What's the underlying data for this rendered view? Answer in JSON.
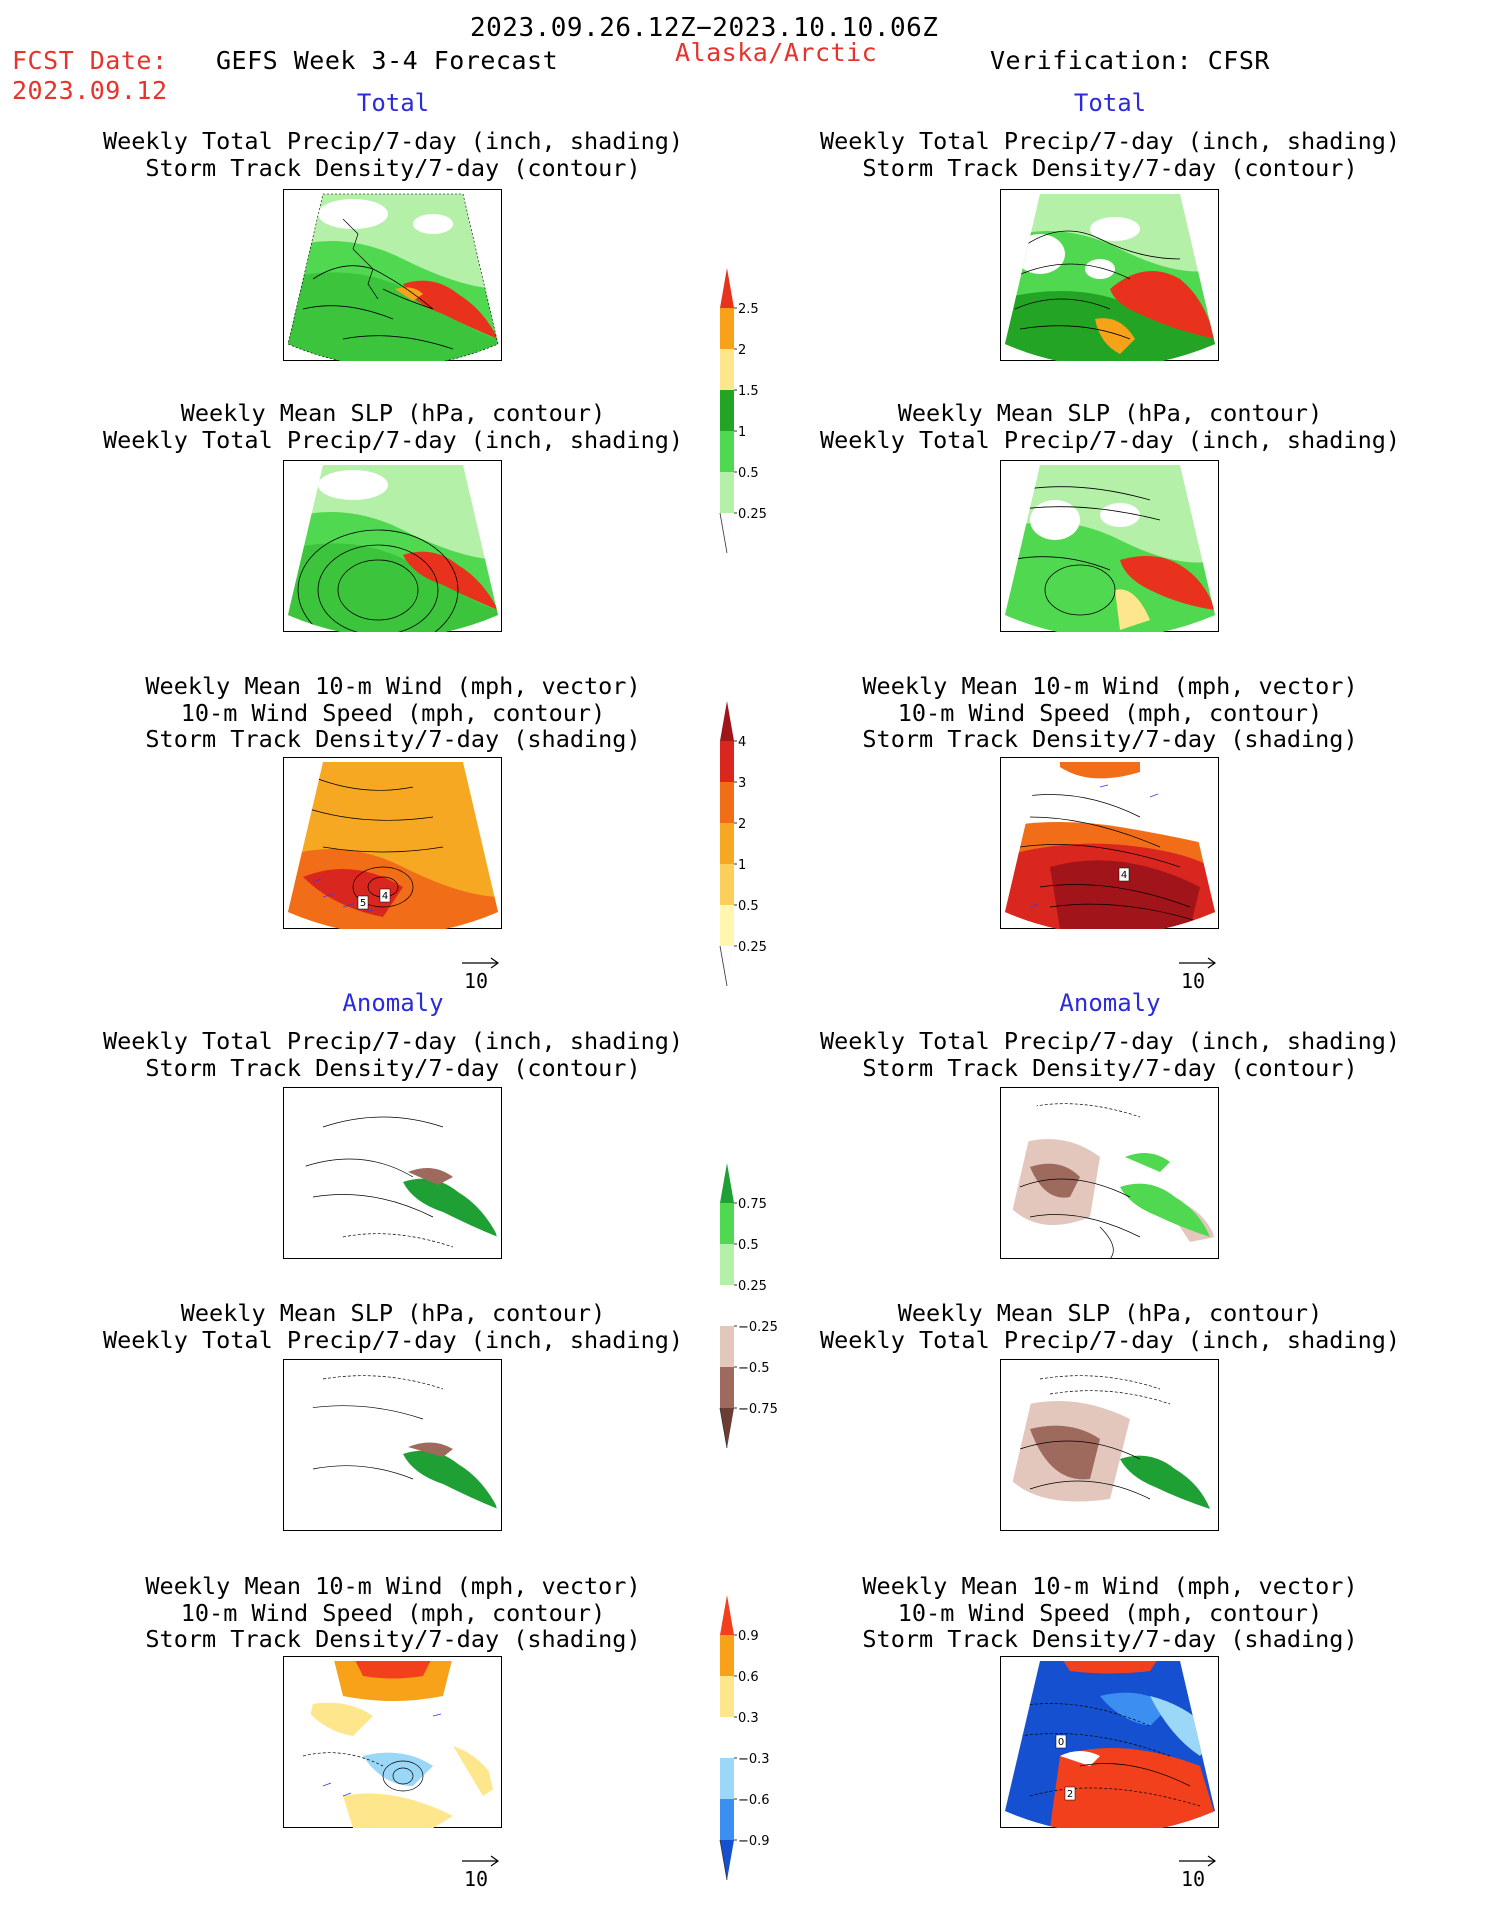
{
  "header": {
    "period": "2023.09.26.12Z−2023.10.10.06Z",
    "fcst_label": "FCST Date:",
    "fcst_date": "2023.09.12",
    "model": "GEFS Week 3-4 Forecast",
    "region": "Alaska/Arctic",
    "verification": "Verification: CFSR"
  },
  "sections": {
    "total": "Total",
    "anomaly": "Anomaly"
  },
  "titles": {
    "precip_storm": [
      "Weekly Total Precip/7-day (inch, shading)",
      "Storm Track Density/7-day (contour)"
    ],
    "slp_precip": [
      "Weekly Mean SLP (hPa, contour)",
      "Weekly Total Precip/7-day (inch, shading)"
    ],
    "wind_storm": [
      "Weekly Mean 10-m Wind (mph, vector)",
      "10-m Wind Speed (mph, contour)",
      "Storm Track Density/7-day (shading)"
    ]
  },
  "vector_ref": "10",
  "colorbars": [
    {
      "id": "precip-total",
      "colors": [
        "#fdfdfd",
        "#b4f0a8",
        "#50d850",
        "#24a424",
        "#fee68c",
        "#f8a21a",
        "#e8321e"
      ],
      "labels": [
        "0.25",
        "0.5",
        "1",
        "1.5",
        "2",
        "2.5"
      ]
    },
    {
      "id": "storm-total",
      "colors": [
        "#fdfdfd",
        "#fff6b0",
        "#fbcf59",
        "#f6a823",
        "#f16d17",
        "#d9261e",
        "#a0141a"
      ],
      "labels": [
        "0.25",
        "0.5",
        "1",
        "2",
        "3",
        "4"
      ]
    },
    {
      "id": "precip-anom",
      "colors": [
        "#6b3d34",
        "#9e6a5e",
        "#e3c7bd",
        "#ffffff",
        "#b4f0a8",
        "#50d850",
        "#1ea034"
      ],
      "labels": [
        "−0.75",
        "−0.5",
        "−0.25",
        "0.25",
        "0.5",
        "0.75"
      ]
    },
    {
      "id": "storm-anom",
      "colors": [
        "#1550d0",
        "#3c8ef0",
        "#9bd8f8",
        "#ffffff",
        "#fee68c",
        "#f8a21a",
        "#f2401c"
      ],
      "labels": [
        "−0.9",
        "−0.6",
        "−0.3",
        "0.3",
        "0.6",
        "0.9"
      ]
    }
  ],
  "panel_labels": {
    "wind_total_fcst": [
      "5",
      "4"
    ],
    "wind_total_obs": [
      "4"
    ],
    "wind_anom_obs": [
      "0",
      "2"
    ]
  }
}
